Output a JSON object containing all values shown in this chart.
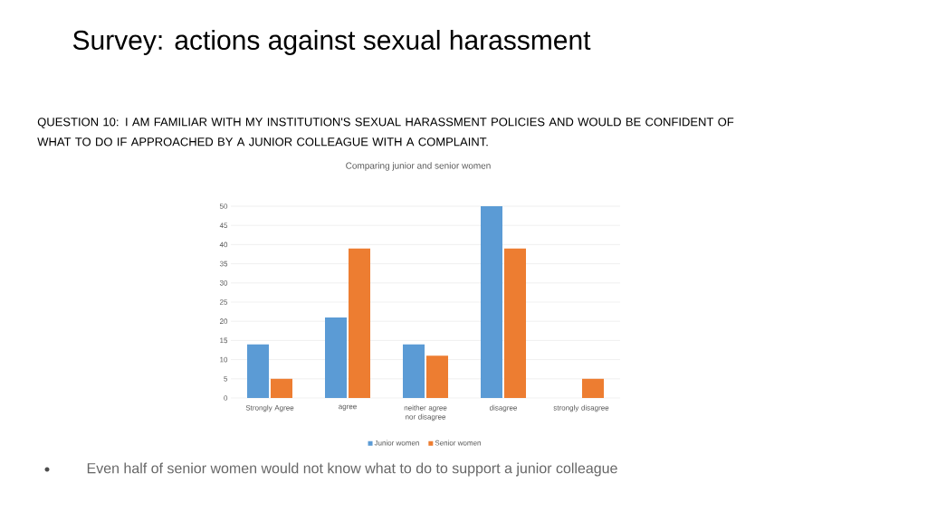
{
  "chart_data": {
    "type": "bar",
    "title": "Survey: actions against sexual harassment",
    "subtitle": "QUESTION 10: I AM FAMILIAR WITH MY INSTITUTION'S SEXUAL HARASSMENT POLICIES AND WOULD BE CONFIDENT OF WHAT TO DO IF APPROACHED BY A JUNIOR COLLEAGUE WITH A COMPLAINT.",
    "annotations": [
      "Comparing junior and senior women",
      "Even half of senior women would not know what to do to support a junior colleague"
    ],
    "categories": [
      "Strongly Agree",
      "agree",
      "neither agree nor disagree",
      "disagree",
      "strongly disagree"
    ],
    "series": [
      {
        "name": "Junior women",
        "color": "#5b9bd5",
        "values": [
          14,
          21,
          14,
          50,
          0
        ]
      },
      {
        "name": "Senior women",
        "color": "#ed7d31",
        "values": [
          5,
          39,
          11,
          39,
          5
        ]
      }
    ],
    "ylim": [
      0,
      50
    ],
    "yticks": [
      0,
      5,
      10,
      15,
      20,
      25,
      30,
      35,
      40,
      45,
      50
    ],
    "grid": "y",
    "legend": "bottom"
  }
}
